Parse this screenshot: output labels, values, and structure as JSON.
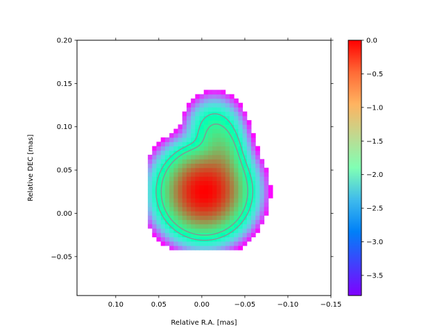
{
  "chart_data": {
    "type": "heatmap",
    "title": "",
    "xlabel": "Relative R.A. [mas]",
    "ylabel": "Relative DEC [mas]",
    "xlim": [
      0.145,
      -0.15
    ],
    "ylim": [
      -0.095,
      0.2
    ],
    "x_ticks": [
      {
        "value": 0.1,
        "label": "0.10"
      },
      {
        "value": 0.05,
        "label": "0.05"
      },
      {
        "value": 0.0,
        "label": "0.00"
      },
      {
        "value": -0.05,
        "label": "−0.05"
      },
      {
        "value": -0.1,
        "label": "−0.10"
      },
      {
        "value": -0.15,
        "label": "−0.15"
      }
    ],
    "y_ticks": [
      {
        "value": -0.05,
        "label": "−0.05"
      },
      {
        "value": 0.0,
        "label": "0.00"
      },
      {
        "value": 0.05,
        "label": "0.05"
      },
      {
        "value": 0.1,
        "label": "0.10"
      },
      {
        "value": 0.15,
        "label": "0.15"
      },
      {
        "value": 0.2,
        "label": "0.20"
      }
    ],
    "colorbar": {
      "colormap": "rainbow",
      "range": [
        -3.8,
        0.0
      ],
      "ticks": [
        {
          "value": 0.0,
          "label": "0.0"
        },
        {
          "value": -0.5,
          "label": "−0.5"
        },
        {
          "value": -1.0,
          "label": "−1.0"
        },
        {
          "value": -1.5,
          "label": "−1.5"
        },
        {
          "value": -2.0,
          "label": "−2.0"
        },
        {
          "value": -2.5,
          "label": "−2.5"
        },
        {
          "value": -3.0,
          "label": "−3.0"
        },
        {
          "value": -3.5,
          "label": "−3.5"
        }
      ]
    },
    "components": [
      {
        "ra": -0.003,
        "dec": 0.025,
        "peak": 0.0,
        "sigma_ra": 0.0185,
        "sigma_dec": 0.0185
      },
      {
        "ra": -0.022,
        "dec": 0.058,
        "peak": -1.0,
        "sigma_ra": 0.0115,
        "sigma_dec": 0.022
      },
      {
        "ra": -0.012,
        "dec": 0.095,
        "peak": -1.75,
        "sigma_ra": 0.012,
        "sigma_dec": 0.015
      }
    ],
    "pixel_size_mas": 0.005,
    "clip_level": -3.8,
    "contour_levels": [
      -2.0,
      -1.6
    ],
    "contour_color": "#7f9a94",
    "grid": false
  }
}
